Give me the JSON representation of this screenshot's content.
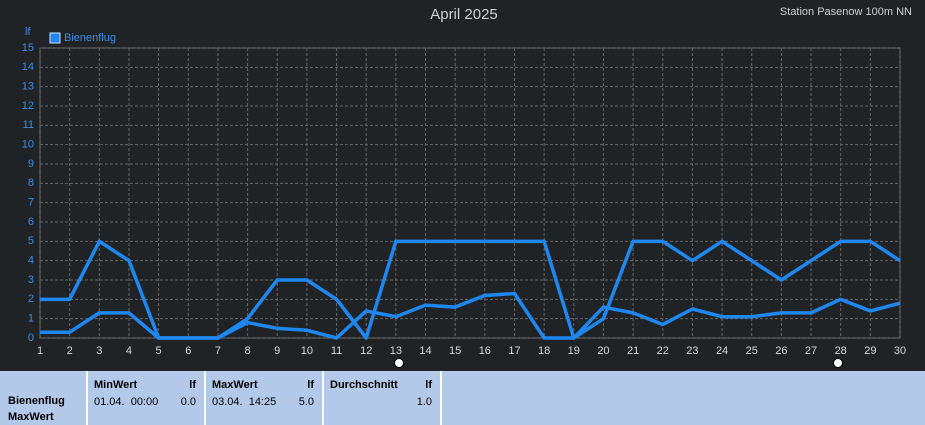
{
  "chart_data": {
    "type": "line",
    "title": "April 2025",
    "subtitle": "Station Pasenow 100m NN",
    "ylabel": "lf",
    "x": [
      1,
      2,
      3,
      4,
      5,
      6,
      7,
      8,
      9,
      10,
      11,
      12,
      13,
      14,
      15,
      16,
      17,
      18,
      19,
      20,
      21,
      22,
      23,
      24,
      25,
      26,
      27,
      28,
      29,
      30
    ],
    "series": [
      {
        "name": "Bienenflug",
        "color": "#1e88f0",
        "values": [
          2,
          2,
          5,
          4,
          0,
          0,
          0,
          1,
          3,
          3,
          2,
          0,
          5,
          5,
          5,
          5,
          5,
          5,
          0,
          1,
          5,
          5,
          4,
          5,
          4,
          3,
          4,
          5,
          5,
          4
        ]
      },
      {
        "color": "#1e88f0",
        "values": [
          0.3,
          0.3,
          1.3,
          1.3,
          0,
          0,
          0,
          0.8,
          0.5,
          0.4,
          0,
          1.4,
          1.1,
          1.7,
          1.6,
          2.2,
          2.3,
          0,
          0,
          1.6,
          1.3,
          0.7,
          1.5,
          1.1,
          1.1,
          1.3,
          1.3,
          2.0,
          1.4,
          1.8
        ]
      }
    ],
    "xlim": [
      1,
      30
    ],
    "xticks": [
      1,
      2,
      3,
      4,
      5,
      6,
      7,
      8,
      9,
      10,
      11,
      12,
      13,
      14,
      15,
      16,
      17,
      18,
      19,
      20,
      21,
      22,
      23,
      24,
      25,
      26,
      27,
      28,
      29,
      30
    ],
    "ylim": [
      0,
      15
    ],
    "yticks": [
      0,
      1,
      2,
      3,
      4,
      5,
      6,
      7,
      8,
      9,
      10,
      11,
      12,
      13,
      14,
      15
    ],
    "grid": true,
    "legend": "top-left"
  },
  "table": {
    "rows": [
      "Bienenflug",
      "MaxWert"
    ],
    "columns": [
      {
        "header": "MinWert",
        "unit": "lf",
        "time": "01.04.  00:00",
        "value": "0.0"
      },
      {
        "header": "MaxWert",
        "unit": "lf",
        "time": "03.04.  14:25",
        "value": "5.0"
      },
      {
        "header": "Durchschnitt",
        "unit": "lf",
        "value": "1.0"
      }
    ]
  }
}
